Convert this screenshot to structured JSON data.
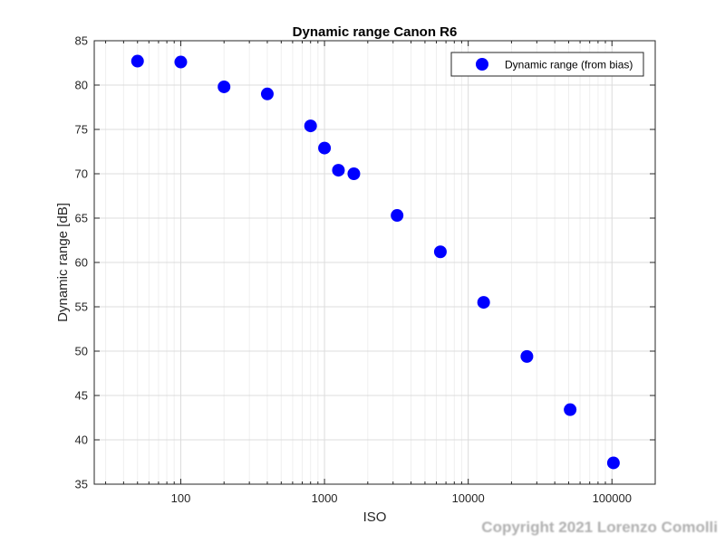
{
  "chart_data": {
    "type": "scatter",
    "title": "Dynamic range Canon R6",
    "xlabel": "ISO",
    "ylabel": "Dynamic range [dB]",
    "x_scale": "log",
    "xlim": [
      25,
      200000
    ],
    "ylim": [
      35,
      85
    ],
    "x_ticks": [
      100,
      1000,
      10000,
      100000
    ],
    "x_tick_labels": [
      "100",
      "1000",
      "10000",
      "100000"
    ],
    "y_ticks": [
      35,
      40,
      45,
      50,
      55,
      60,
      65,
      70,
      75,
      80,
      85
    ],
    "y_tick_labels": [
      "35",
      "40",
      "45",
      "50",
      "55",
      "60",
      "65",
      "70",
      "75",
      "80",
      "85"
    ],
    "grid": true,
    "minor_grid": true,
    "legend_position": "top-right",
    "series": [
      {
        "name": "Dynamic range (from bias)",
        "color": "#0000ff",
        "marker": "circle",
        "x": [
          50,
          100,
          200,
          400,
          800,
          1000,
          1250,
          1600,
          3200,
          6400,
          12800,
          25600,
          51200,
          102400
        ],
        "y": [
          82.7,
          82.6,
          79.8,
          79.0,
          75.4,
          72.9,
          70.4,
          70.0,
          65.3,
          61.2,
          55.5,
          49.4,
          43.4,
          37.4
        ]
      }
    ]
  },
  "watermark": "Copyright 2021 Lorenzo Comolli"
}
